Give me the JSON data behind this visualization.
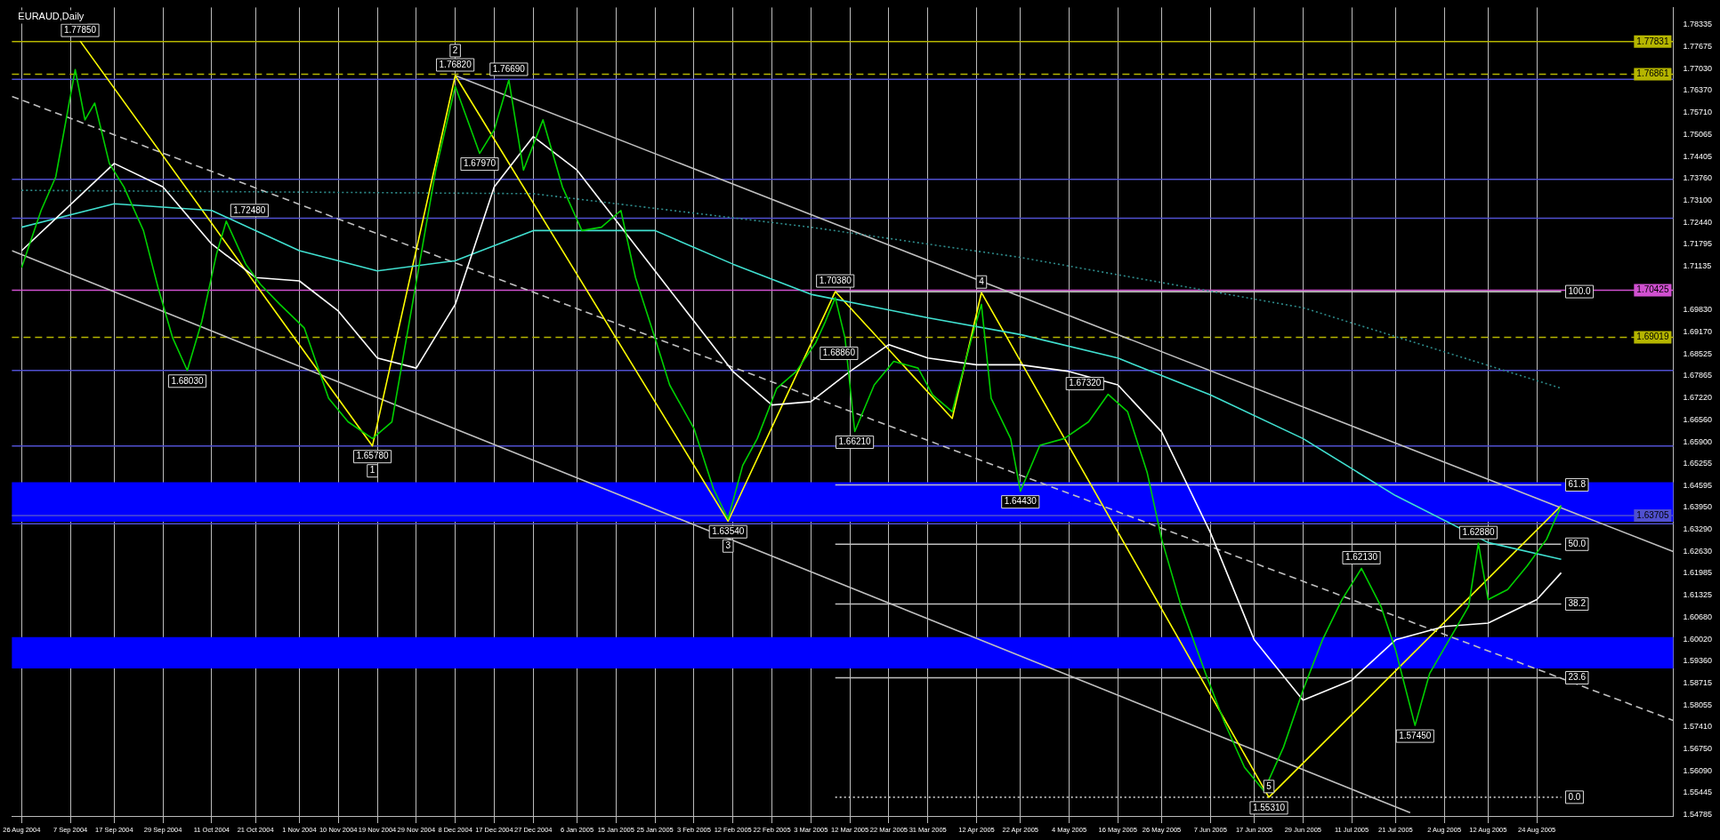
{
  "chart_data": {
    "type": "line",
    "title": "EURAUD,Daily",
    "marker": "none",
    "grid": "x",
    "legend": false,
    "xlim": [
      "2004-08-24",
      "2005-09-26"
    ],
    "xticks": [
      {
        "value": "2004-08-26",
        "label": "26 Aug 2004"
      },
      {
        "value": "2004-09-07",
        "label": "7 Sep 2004"
      },
      {
        "value": "2004-09-17",
        "label": "17 Sep 2004"
      },
      {
        "value": "2004-09-29",
        "label": "29 Sep 2004"
      },
      {
        "value": "2004-10-11",
        "label": "11 Oct 2004"
      },
      {
        "value": "2004-10-21",
        "label": "21 Oct 2004"
      },
      {
        "value": "2004-11-01",
        "label": "1 Nov 2004"
      },
      {
        "value": "2004-11-10",
        "label": "10 Nov 2004"
      },
      {
        "value": "2004-11-19",
        "label": "19 Nov 2004"
      },
      {
        "value": "2004-11-29",
        "label": "29 Nov 2004"
      },
      {
        "value": "2004-12-08",
        "label": "8 Dec 2004"
      },
      {
        "value": "2004-12-17",
        "label": "17 Dec 2004"
      },
      {
        "value": "2004-12-27",
        "label": "27 Dec 2004"
      },
      {
        "value": "2005-01-06",
        "label": "6 Jan 2005"
      },
      {
        "value": "2005-01-15",
        "label": "15 Jan 2005"
      },
      {
        "value": "2005-01-25",
        "label": "25 Jan 2005"
      },
      {
        "value": "2005-02-03",
        "label": "3 Feb 2005"
      },
      {
        "value": "2005-02-12",
        "label": "12 Feb 2005"
      },
      {
        "value": "2005-02-22",
        "label": "22 Feb 2005"
      },
      {
        "value": "2005-03-03",
        "label": "3 Mar 2005"
      },
      {
        "value": "2005-03-12",
        "label": "12 Mar 2005"
      },
      {
        "value": "2005-03-22",
        "label": "22 Mar 2005"
      },
      {
        "value": "2005-03-31",
        "label": "31 Mar 2005"
      },
      {
        "value": "2005-04-12",
        "label": "12 Apr 2005"
      },
      {
        "value": "2005-04-22",
        "label": "22 Apr 2005"
      },
      {
        "value": "2005-05-04",
        "label": "4 May 2005"
      },
      {
        "value": "2005-05-16",
        "label": "16 May 2005"
      },
      {
        "value": "2005-05-26",
        "label": "26 May 2005"
      },
      {
        "value": "2005-06-07",
        "label": "7 Jun 2005"
      },
      {
        "value": "2005-06-17",
        "label": "17 Jun 2005"
      },
      {
        "value": "2005-06-29",
        "label": "29 Jun 2005"
      },
      {
        "value": "2005-07-11",
        "label": "11 Jul 2005"
      },
      {
        "value": "2005-07-21",
        "label": "21 Jul 2005"
      },
      {
        "value": "2005-08-02",
        "label": "2 Aug 2005"
      },
      {
        "value": "2005-08-12",
        "label": "12 Aug 2005"
      },
      {
        "value": "2005-08-24",
        "label": "24 Aug 2005"
      }
    ],
    "ylim": [
      1.5475,
      1.7885
    ],
    "yticks": [
      {
        "value": 1.78335,
        "label": "1.78335"
      },
      {
        "value": 1.77675,
        "label": "1.77675"
      },
      {
        "value": 1.7703,
        "label": "1.77030"
      },
      {
        "value": 1.7637,
        "label": "1.76370"
      },
      {
        "value": 1.7571,
        "label": "1.75710"
      },
      {
        "value": 1.75065,
        "label": "1.75065"
      },
      {
        "value": 1.74405,
        "label": "1.74405"
      },
      {
        "value": 1.7376,
        "label": "1.73760"
      },
      {
        "value": 1.731,
        "label": "1.73100"
      },
      {
        "value": 1.7244,
        "label": "1.72440"
      },
      {
        "value": 1.71795,
        "label": "1.71795"
      },
      {
        "value": 1.71135,
        "label": "1.71135"
      },
      {
        "value": 1.6983,
        "label": "1.69830"
      },
      {
        "value": 1.6917,
        "label": "1.69170"
      },
      {
        "value": 1.68525,
        "label": "1.68525"
      },
      {
        "value": 1.67865,
        "label": "1.67865"
      },
      {
        "value": 1.6722,
        "label": "1.67220"
      },
      {
        "value": 1.6656,
        "label": "1.66560"
      },
      {
        "value": 1.659,
        "label": "1.65900"
      },
      {
        "value": 1.65255,
        "label": "1.65255"
      },
      {
        "value": 1.64595,
        "label": "1.64595"
      },
      {
        "value": 1.6395,
        "label": "1.63950"
      },
      {
        "value": 1.6329,
        "label": "1.63290"
      },
      {
        "value": 1.6263,
        "label": "1.62630"
      },
      {
        "value": 1.61985,
        "label": "1.61985"
      },
      {
        "value": 1.61325,
        "label": "1.61325"
      },
      {
        "value": 1.6068,
        "label": "1.60680"
      },
      {
        "value": 1.6002,
        "label": "1.60020"
      },
      {
        "value": 1.5936,
        "label": "1.59360"
      },
      {
        "value": 1.58715,
        "label": "1.58715"
      },
      {
        "value": 1.58055,
        "label": "1.58055"
      },
      {
        "value": 1.5741,
        "label": "1.57410"
      },
      {
        "value": 1.5675,
        "label": "1.56750"
      },
      {
        "value": 1.5609,
        "label": "1.56090"
      },
      {
        "value": 1.55445,
        "label": "1.55445"
      },
      {
        "value": 1.54785,
        "label": "1.54785"
      }
    ],
    "bands": [
      {
        "axis": "y",
        "from": 1.6352,
        "to": 1.647,
        "color": "#0000ff"
      },
      {
        "axis": "y",
        "from": 1.5915,
        "to": 1.6008,
        "color": "#0000ff"
      }
    ],
    "ref_lines": [
      {
        "axis": "y",
        "value": 1.77831,
        "label": "1.77831",
        "color": "#b5b500"
      },
      {
        "axis": "y",
        "value": 1.76861,
        "label": "1.76861",
        "color": "#b5b500",
        "line_style": "dashed"
      },
      {
        "axis": "y",
        "value": 1.7671,
        "color": "#5050d0"
      },
      {
        "axis": "y",
        "value": 1.7373,
        "color": "#5050d0"
      },
      {
        "axis": "y",
        "value": 1.7257,
        "color": "#5050d0"
      },
      {
        "axis": "y",
        "value": 1.70425,
        "label": "1.70425",
        "color": "#d050d0"
      },
      {
        "axis": "y",
        "value": 1.69019,
        "label": "1.69019",
        "color": "#b5b500",
        "line_style": "dashed"
      },
      {
        "axis": "y",
        "value": 1.6803,
        "color": "#5050d0"
      },
      {
        "axis": "y",
        "value": 1.6578,
        "color": "#5050d0"
      },
      {
        "axis": "y",
        "value": 1.63705,
        "label": "1.63705",
        "color": "#5050d0"
      },
      {
        "axis": "y",
        "value": 1.6346,
        "color": "#5050d0"
      }
    ],
    "series": [
      {
        "color": "#00d000",
        "x": [
          "2004-08-26",
          "2004-08-31",
          "2004-09-03",
          "2004-09-08",
          "2004-09-10",
          "2004-09-13",
          "2004-09-16",
          "2004-09-20",
          "2004-09-24",
          "2004-09-28",
          "2004-10-01",
          "2004-10-05",
          "2004-10-08",
          "2004-10-12",
          "2004-10-14",
          "2004-10-19",
          "2004-10-22",
          "2004-10-27",
          "2004-11-02",
          "2004-11-08",
          "2004-11-12",
          "2004-11-18",
          "2004-11-23",
          "2004-11-26",
          "2004-11-30",
          "2004-12-03",
          "2004-12-08",
          "2004-12-10",
          "2004-12-14",
          "2004-12-17",
          "2004-12-21",
          "2004-12-24",
          "2004-12-29",
          "2005-01-03",
          "2005-01-07",
          "2005-01-12",
          "2005-01-17",
          "2005-01-20",
          "2005-01-25",
          "2005-01-28",
          "2005-02-03",
          "2005-02-08",
          "2005-02-11",
          "2005-02-15",
          "2005-02-18",
          "2005-02-23",
          "2005-02-28",
          "2005-03-04",
          "2005-03-07",
          "2005-03-09",
          "2005-03-11",
          "2005-03-14",
          "2005-03-18",
          "2005-03-23",
          "2005-03-29",
          "2005-04-01",
          "2005-04-06",
          "2005-04-11",
          "2005-04-13",
          "2005-04-15",
          "2005-04-20",
          "2005-04-22",
          "2005-04-27",
          "2005-05-03",
          "2005-05-09",
          "2005-05-13",
          "2005-05-18",
          "2005-05-23",
          "2005-05-26",
          "2005-05-31",
          "2005-06-06",
          "2005-06-10",
          "2005-06-15",
          "2005-06-20",
          "2005-06-24",
          "2005-06-29",
          "2005-07-04",
          "2005-07-08",
          "2005-07-13",
          "2005-07-18",
          "2005-07-21",
          "2005-07-26",
          "2005-07-29",
          "2005-08-03",
          "2005-08-08",
          "2005-08-10",
          "2005-08-12",
          "2005-08-17",
          "2005-08-22",
          "2005-08-26",
          "2005-08-30"
        ],
        "values": [
          1.711,
          1.728,
          1.738,
          1.77,
          1.755,
          1.76,
          1.742,
          1.735,
          1.722,
          1.705,
          1.69,
          1.6803,
          1.695,
          1.715,
          1.7248,
          1.712,
          1.706,
          1.7,
          1.693,
          1.672,
          1.665,
          1.66,
          1.665,
          1.69,
          1.715,
          1.74,
          1.765,
          1.757,
          1.745,
          1.752,
          1.7669,
          1.74,
          1.755,
          1.735,
          1.722,
          1.723,
          1.728,
          1.708,
          1.69,
          1.676,
          1.663,
          1.645,
          1.636,
          1.652,
          1.66,
          1.675,
          1.68,
          1.6886,
          1.695,
          1.702,
          1.69,
          1.6621,
          1.676,
          1.683,
          1.681,
          1.673,
          1.668,
          1.69,
          1.7,
          1.672,
          1.66,
          1.6443,
          1.658,
          1.66,
          1.665,
          1.6732,
          1.668,
          1.65,
          1.63,
          1.61,
          1.59,
          1.575,
          1.562,
          1.555,
          1.568,
          1.585,
          1.6,
          1.612,
          1.6213,
          1.61,
          1.597,
          1.5745,
          1.59,
          1.6,
          1.61,
          1.6288,
          1.612,
          1.615,
          1.622,
          1.63,
          1.64
        ]
      },
      {
        "color": "#ffffff",
        "x": [
          "2004-08-26",
          "2004-09-17",
          "2004-09-29",
          "2004-10-11",
          "2004-10-21",
          "2004-11-01",
          "2004-11-10",
          "2004-11-19",
          "2004-11-29",
          "2004-12-08",
          "2004-12-17",
          "2004-12-27",
          "2005-01-06",
          "2005-01-15",
          "2005-01-25",
          "2005-02-03",
          "2005-02-12",
          "2005-02-22",
          "2005-03-03",
          "2005-03-12",
          "2005-03-22",
          "2005-03-31",
          "2005-04-12",
          "2005-04-22",
          "2005-05-04",
          "2005-05-16",
          "2005-05-26",
          "2005-06-07",
          "2005-06-17",
          "2005-06-29",
          "2005-07-11",
          "2005-07-21",
          "2005-08-02",
          "2005-08-12",
          "2005-08-24",
          "2005-08-30"
        ],
        "values": [
          1.716,
          1.742,
          1.735,
          1.718,
          1.708,
          1.707,
          1.698,
          1.684,
          1.681,
          1.7,
          1.735,
          1.75,
          1.74,
          1.725,
          1.71,
          1.695,
          1.68,
          1.67,
          1.671,
          1.68,
          1.688,
          1.684,
          1.682,
          1.682,
          1.68,
          1.676,
          1.662,
          1.632,
          1.6,
          1.582,
          1.588,
          1.6,
          1.604,
          1.605,
          1.612,
          1.62
        ]
      },
      {
        "color": "#40e0d0",
        "x": [
          "2004-08-26",
          "2004-09-17",
          "2004-10-11",
          "2004-11-01",
          "2004-11-19",
          "2004-12-08",
          "2004-12-27",
          "2005-01-25",
          "2005-02-12",
          "2005-03-03",
          "2005-03-31",
          "2005-04-22",
          "2005-05-16",
          "2005-06-07",
          "2005-06-29",
          "2005-07-21",
          "2005-08-12",
          "2005-08-30"
        ],
        "values": [
          1.723,
          1.73,
          1.728,
          1.716,
          1.71,
          1.713,
          1.722,
          1.722,
          1.712,
          1.703,
          1.696,
          1.691,
          1.684,
          1.673,
          1.66,
          1.643,
          1.629,
          1.624
        ]
      },
      {
        "color": "#2e8b8b",
        "line_style": "dotted",
        "x": [
          "2004-08-26",
          "2004-12-27",
          "2005-03-03",
          "2005-04-22",
          "2005-06-29",
          "2005-08-30"
        ],
        "values": [
          1.734,
          1.733,
          1.723,
          1.714,
          1.699,
          1.675
        ]
      },
      {
        "color": "#ffff00",
        "x": [
          "2004-09-09",
          "2004-11-18",
          "2004-12-08",
          "2005-02-11",
          "2005-03-09",
          "2005-04-06",
          "2005-04-13",
          "2005-06-21",
          "2005-08-30"
        ],
        "values": [
          1.7785,
          1.6578,
          1.7682,
          1.6354,
          1.7038,
          1.666,
          1.7035,
          1.5531,
          1.64
        ]
      },
      {
        "color": "#c0c0c0",
        "x": [
          "2004-12-08",
          "2005-09-26"
        ],
        "values": [
          1.7682,
          1.6263
        ]
      },
      {
        "color": "#c0c0c0",
        "line_style": "dashed",
        "x": [
          "2004-08-24",
          "2005-09-26"
        ],
        "values": [
          1.762,
          1.576
        ]
      },
      {
        "color": "#c0c0c0",
        "x": [
          "2004-08-24",
          "2005-07-25"
        ],
        "values": [
          1.716,
          1.5485
        ]
      },
      {
        "color": "#c0c0c0",
        "x": [
          "2005-03-09",
          "2005-08-30"
        ],
        "values": [
          1.7038,
          1.7038
        ]
      },
      {
        "color": "#c0c0c0",
        "x": [
          "2005-03-09",
          "2005-08-30"
        ],
        "values": [
          1.6462,
          1.6462
        ]
      },
      {
        "color": "#c0c0c0",
        "x": [
          "2005-03-09",
          "2005-08-30"
        ],
        "values": [
          1.6285,
          1.6285
        ]
      },
      {
        "color": "#c0c0c0",
        "x": [
          "2005-03-09",
          "2005-08-30"
        ],
        "values": [
          1.6107,
          1.6107
        ]
      },
      {
        "color": "#c0c0c0",
        "x": [
          "2005-03-09",
          "2005-08-30"
        ],
        "values": [
          1.5887,
          1.5887
        ]
      },
      {
        "color": "#c0c0c0",
        "line_style": "dotted",
        "x": [
          "2005-03-09",
          "2005-08-30"
        ],
        "values": [
          1.5531,
          1.5531
        ]
      }
    ],
    "annotations": [
      {
        "text": "1.77850",
        "x": "2004-09-09",
        "y": 1.7785
      },
      {
        "text": "1.76820",
        "x": "2004-12-08",
        "y": 1.7682
      },
      {
        "text": "1.76690",
        "x": "2004-12-21",
        "y": 1.7669
      },
      {
        "text": "1.72480",
        "x": "2004-10-14",
        "y": 1.7248
      },
      {
        "text": "1.68030",
        "x": "2004-10-05",
        "y": 1.6803
      },
      {
        "text": "1.65780",
        "x": "2004-11-18",
        "y": 1.6578
      },
      {
        "text": "1.67970",
        "x": "2004-12-14",
        "y": 1.745
      },
      {
        "text": "1.70380",
        "x": "2005-03-09",
        "y": 1.7038
      },
      {
        "text": "1.68860",
        "x": "2005-03-04",
        "y": 1.6886
      },
      {
        "text": "1.66210",
        "x": "2005-03-14",
        "y": 1.6621
      },
      {
        "text": "1.63540",
        "x": "2005-02-11",
        "y": 1.6354
      },
      {
        "text": "1.67320",
        "x": "2005-05-13",
        "y": 1.6732
      },
      {
        "text": "1.64430",
        "x": "2005-04-22",
        "y": 1.6443
      },
      {
        "text": "1.55310",
        "x": "2005-06-21",
        "y": 1.5531
      },
      {
        "text": "1.62130",
        "x": "2005-07-13",
        "y": 1.6213
      },
      {
        "text": "1.57450",
        "x": "2005-07-26",
        "y": 1.5745
      },
      {
        "text": "1.62880",
        "x": "2005-08-10",
        "y": 1.6288
      },
      {
        "text": "1",
        "x": "2004-11-18",
        "y": 1.6578
      },
      {
        "text": "2",
        "x": "2004-12-08",
        "y": 1.7682
      },
      {
        "text": "3",
        "x": "2005-02-11",
        "y": 1.6354
      },
      {
        "text": "4",
        "x": "2005-04-13",
        "y": 1.7035
      },
      {
        "text": "5",
        "x": "2005-06-21",
        "y": 1.5531
      },
      {
        "text": "100.0",
        "x": "2005-08-30",
        "y": 1.7038
      },
      {
        "text": "61.8",
        "x": "2005-08-30",
        "y": 1.6462
      },
      {
        "text": "50.0",
        "x": "2005-08-30",
        "y": 1.6285
      },
      {
        "text": "38.2",
        "x": "2005-08-30",
        "y": 1.6107
      },
      {
        "text": "23.6",
        "x": "2005-08-30",
        "y": 1.5887
      },
      {
        "text": "0.0",
        "x": "2005-08-30",
        "y": 1.5531
      }
    ]
  }
}
